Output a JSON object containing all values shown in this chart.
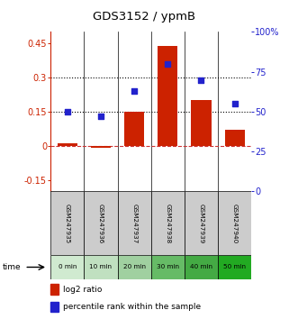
{
  "title": "GDS3152 / ypmB",
  "samples": [
    "GSM247935",
    "GSM247936",
    "GSM247937",
    "GSM247938",
    "GSM247939",
    "GSM247940"
  ],
  "time_labels": [
    "0 min",
    "10 min",
    "20 min",
    "30 min",
    "40 min",
    "50 min"
  ],
  "log2_ratio": [
    0.01,
    -0.01,
    0.15,
    0.44,
    0.2,
    0.07
  ],
  "percentile_rank": [
    0.5,
    0.47,
    0.63,
    0.8,
    0.7,
    0.55
  ],
  "ylim_left": [
    -0.2,
    0.5
  ],
  "ylim_right": [
    0.0,
    1.0
  ],
  "yticks_left": [
    -0.15,
    0.0,
    0.15,
    0.3,
    0.45
  ],
  "yticks_right": [
    0.0,
    0.25,
    0.5,
    0.75,
    1.0
  ],
  "ytick_labels_left": [
    "-0.15",
    "0",
    "0.15",
    "0.3",
    "0.45"
  ],
  "ytick_labels_right": [
    "0",
    "25",
    "50",
    "75",
    "100%"
  ],
  "hlines": [
    0.0,
    0.15,
    0.3
  ],
  "hline_styles": [
    "dashed",
    "dotted",
    "dotted"
  ],
  "hline_colors": [
    "#cc3333",
    "#000000",
    "#000000"
  ],
  "bar_color": "#cc2200",
  "dot_color": "#2222cc",
  "bar_width": 0.6,
  "bg_plot": "#ffffff",
  "bg_gsm": "#cccccc",
  "time_colors": [
    "#d0ead0",
    "#c0e0c0",
    "#a0d0a0",
    "#66bb66",
    "#44aa44",
    "#22aa22"
  ],
  "legend_bar_label": "log2 ratio",
  "legend_dot_label": "percentile rank within the sample",
  "time_label": "time"
}
